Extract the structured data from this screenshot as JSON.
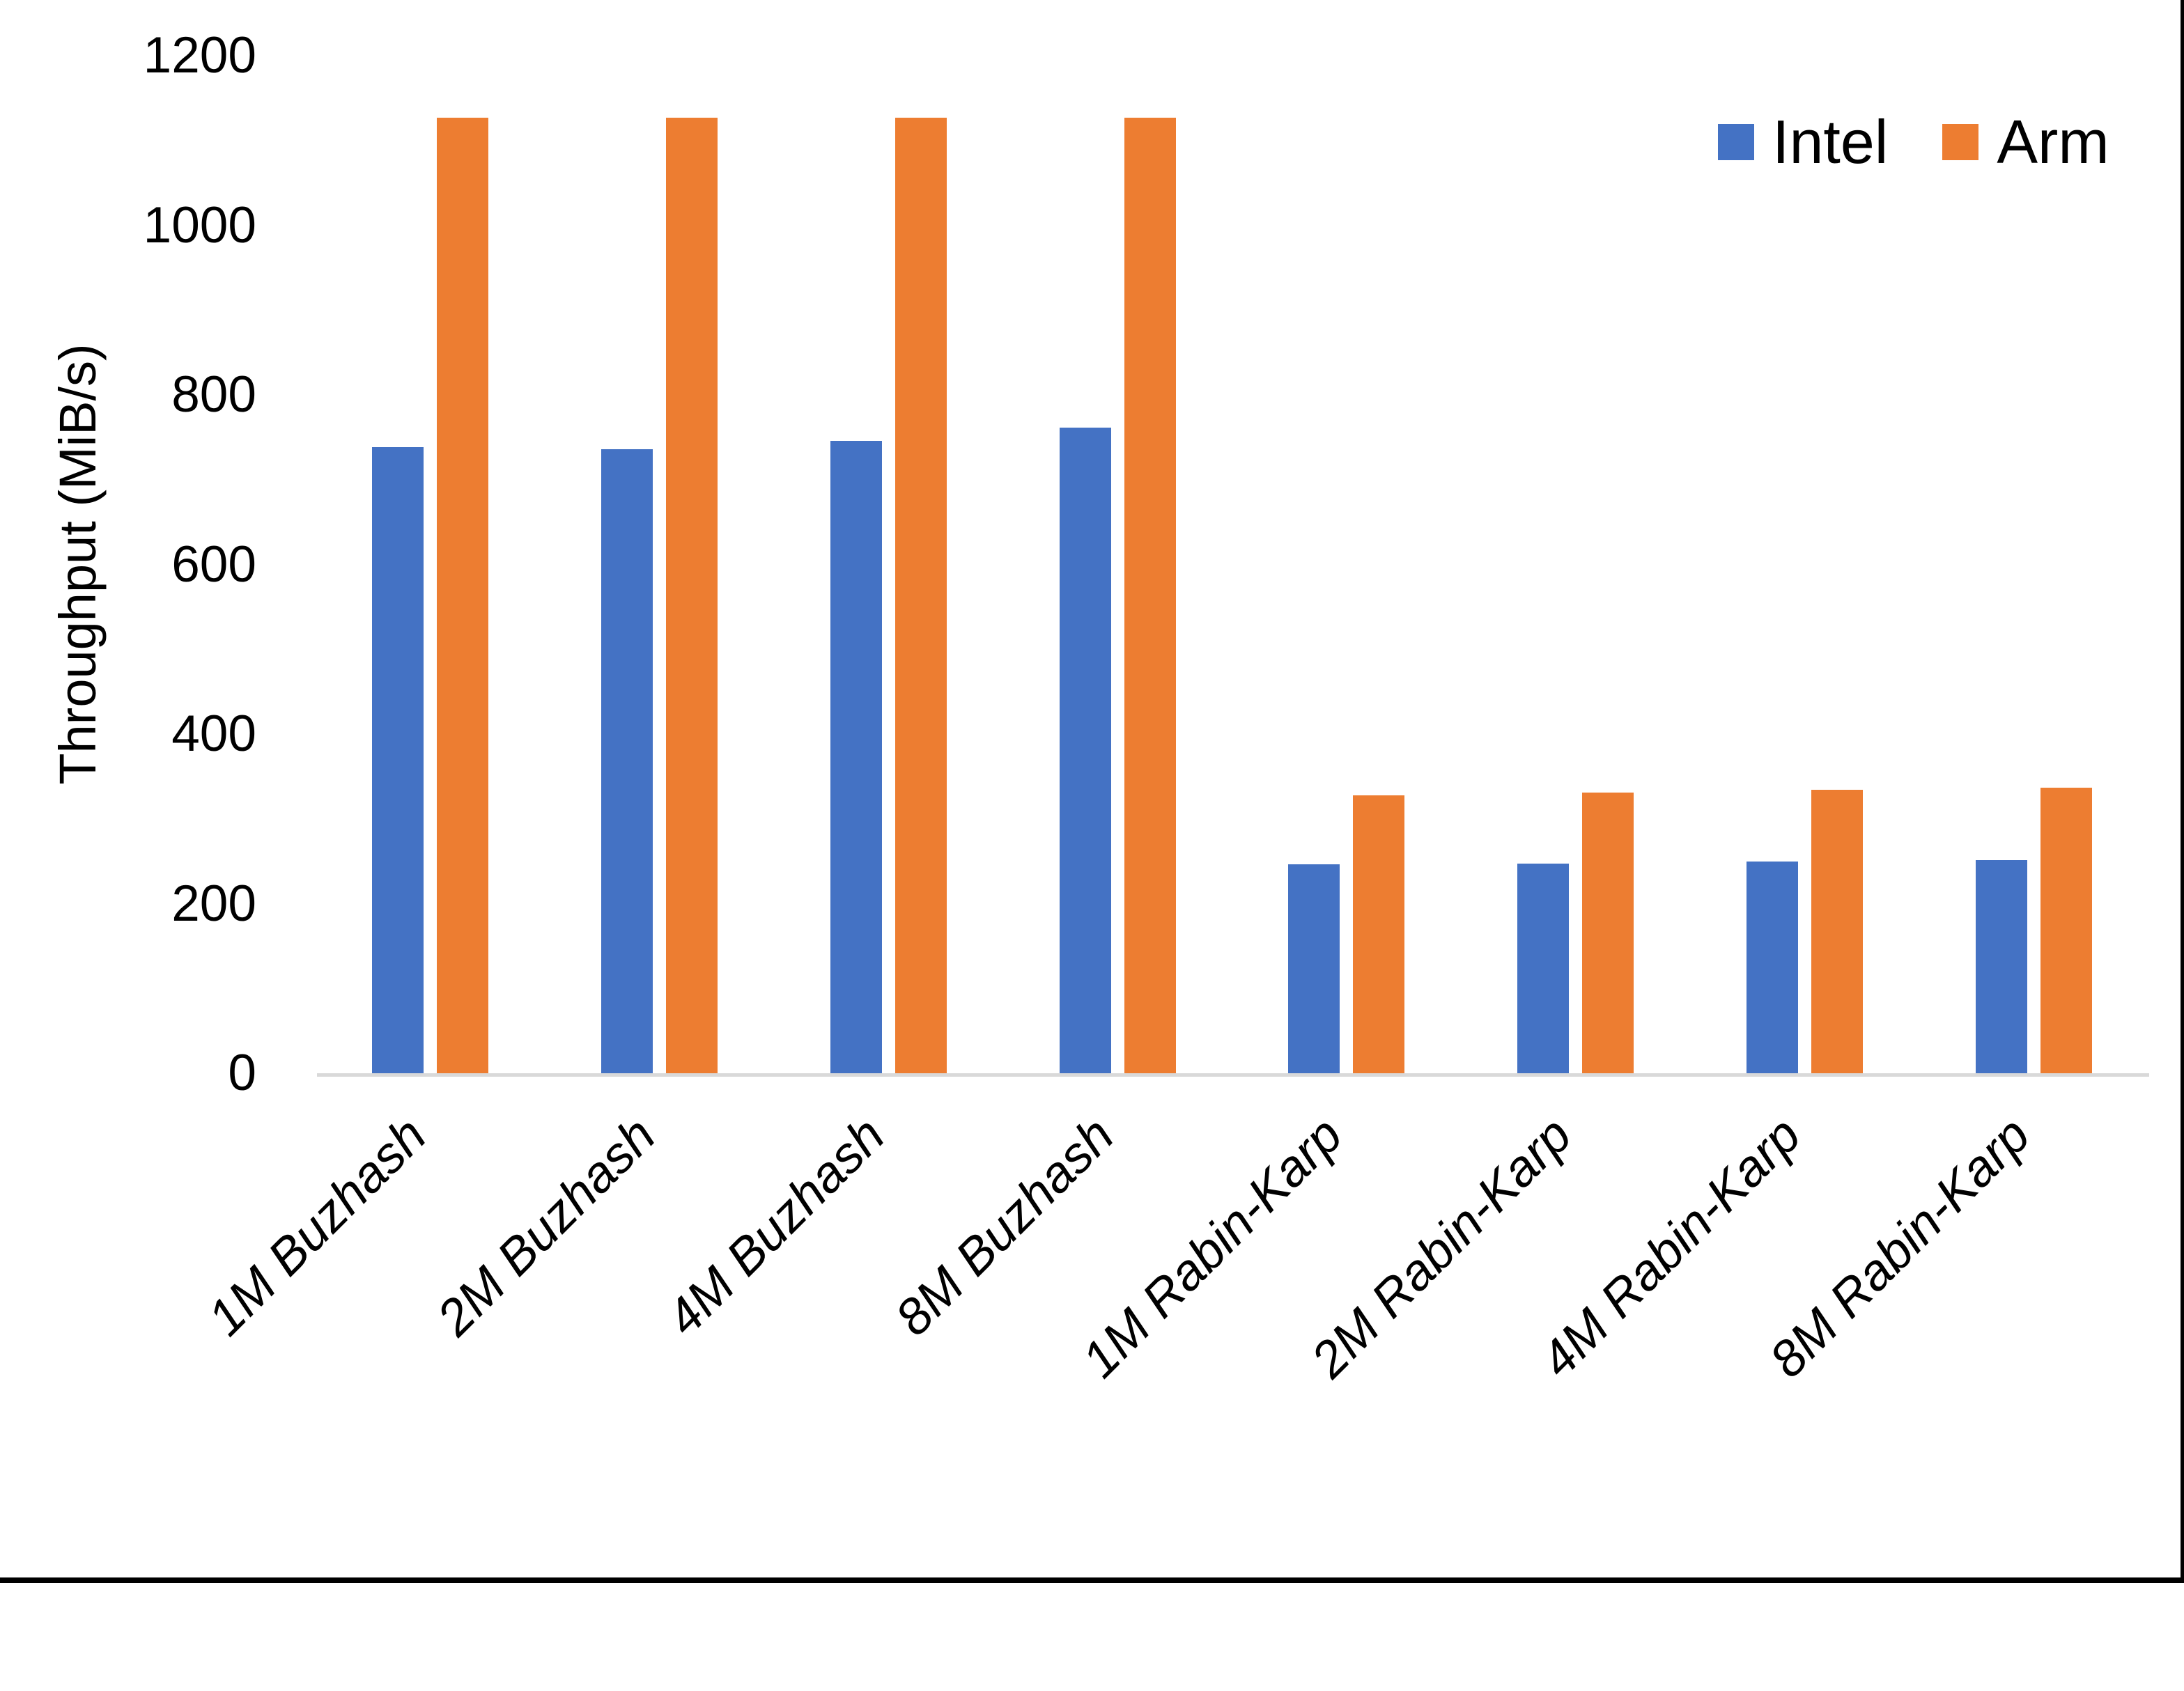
{
  "chart_data": {
    "type": "bar",
    "title": "",
    "xlabel": "",
    "ylabel": "Throughput (MiB/s)",
    "categories": [
      "1M Buzhash",
      "2M Buzhash",
      "4M Buzhash",
      "8M Buzhash",
      "1M Rabin-Karp",
      "2M Rabin-Karp",
      "4M Rabin-Karp",
      "8M Rabin-Karp"
    ],
    "series": [
      {
        "name": "Intel",
        "color": "#4472C4",
        "values": [
          738,
          736,
          746,
          761,
          246,
          247,
          250,
          251
        ]
      },
      {
        "name": "Arm",
        "color": "#ED7D31",
        "values": [
          1127,
          1127,
          1127,
          1127,
          328,
          331,
          334,
          337
        ]
      }
    ],
    "yticks": [
      0,
      200,
      400,
      600,
      800,
      1000,
      1200
    ],
    "ylim": [
      0,
      1200
    ],
    "grid": false,
    "legend_position": "top-right",
    "axis_line_color": "#D9D9D9",
    "background_color": "#FFFFFF",
    "frame_border_color": "#000000"
  }
}
